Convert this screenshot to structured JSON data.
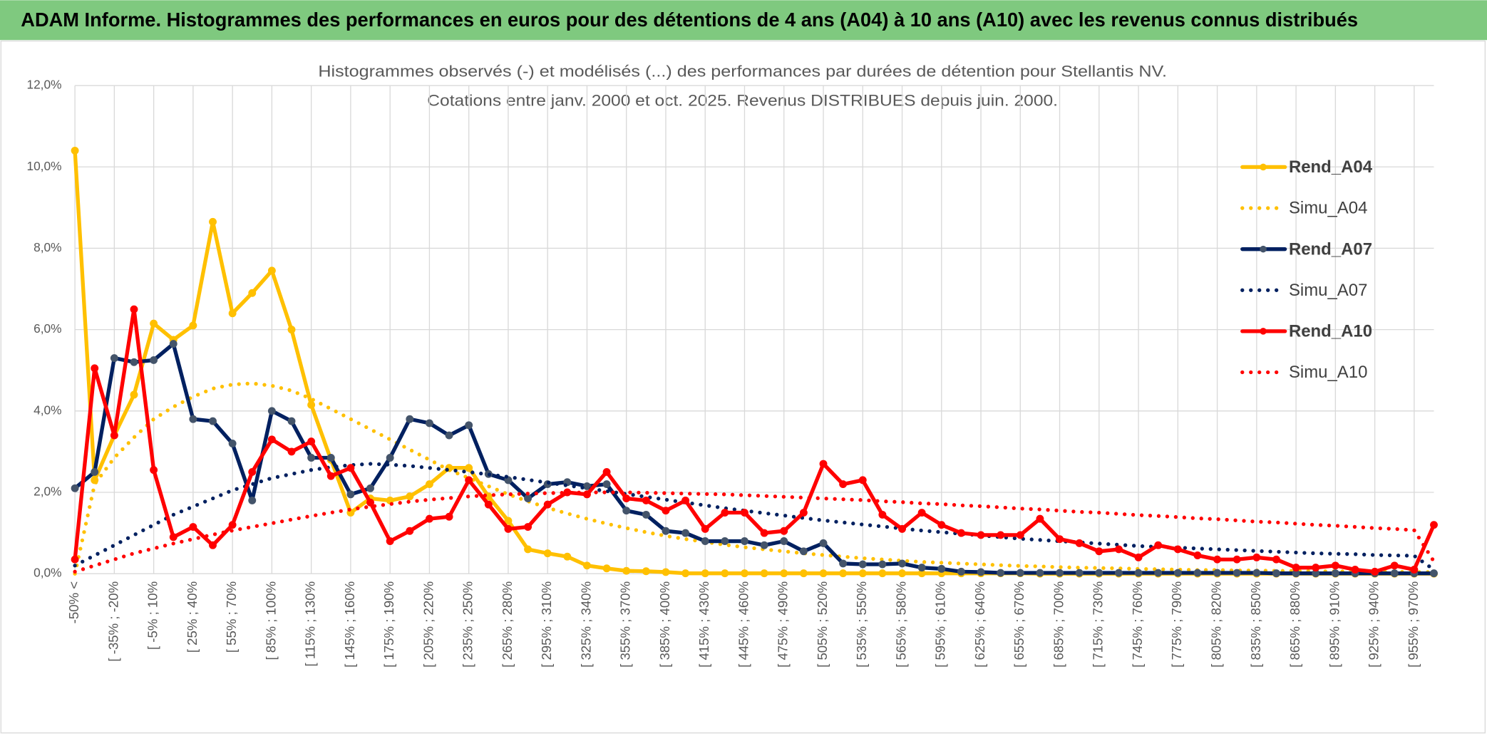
{
  "chart_data": {
    "type": "line",
    "title": "ADAM Informe. Histogrammes des performances en euros pour des détentions de 4 ans (A04) à 10 ans (A10) avec les revenus connus distribués",
    "subtitle": [
      "Histogrammes observés (-) et modélisés (...) des performances par durées de détention pour Stellantis NV.",
      "Cotations entre janv. 2000 et oct. 2025. Revenus DISTRIBUES depuis juin. 2000."
    ],
    "categories": [
      "-50% <",
      null,
      "[ -35% ; -20%",
      null,
      "[ -5% ; 10%",
      null,
      "[ 25% ; 40%",
      null,
      "[ 55% ; 70%",
      null,
      "[ 85% ; 100%",
      null,
      "[ 115% ; 130%",
      null,
      "[ 145% ; 160%",
      null,
      "[ 175% ; 190%",
      null,
      "[ 205% ; 220%",
      null,
      "[ 235% ; 250%",
      null,
      "[ 265% ; 280%",
      null,
      "[ 295% ; 310%",
      null,
      "[ 325% ; 340%",
      null,
      "[ 355% ; 370%",
      null,
      "[ 385% ; 400%",
      null,
      "[ 415% ; 430%",
      null,
      "[ 445% ; 460%",
      null,
      "[ 475% ; 490%",
      null,
      "[ 505% ; 520%",
      null,
      "[ 535% ; 550%",
      null,
      "[ 565% ; 580%",
      null,
      "[ 595% ; 610%",
      null,
      "[ 625% ; 640%",
      null,
      "[ 655% ; 670%",
      null,
      "[ 685% ; 700%",
      null,
      "[ 715% ; 730%",
      null,
      "[ 745% ; 760%",
      null,
      "[ 775% ; 790%",
      null,
      "[ 805% ; 820%",
      null,
      "[ 835% ; 850%",
      null,
      "[ 865% ; 880%",
      null,
      "[ 895% ; 910%",
      null,
      "[ 925% ; 940%",
      null,
      "[ 955% ; 970%",
      null
    ],
    "series": [
      {
        "name": "Rend_A04",
        "color": "#ffc000",
        "linestyle": "solid",
        "markers": true,
        "values": [
          10.4,
          2.3,
          3.4,
          4.4,
          6.15,
          5.75,
          6.1,
          8.65,
          6.4,
          6.9,
          7.45,
          6.0,
          4.15,
          2.8,
          1.5,
          1.85,
          1.8,
          1.9,
          2.2,
          2.6,
          2.6,
          1.9,
          1.3,
          0.6,
          0.5,
          0.42,
          0.2,
          0.13,
          0.07,
          0.06,
          0.04,
          0.01,
          0.01,
          0.01,
          0.01,
          0.01,
          0.01,
          0.01,
          0.01,
          0.01,
          0.01,
          0.01,
          0.01,
          0.01,
          0.01,
          0.01,
          0.01,
          0.01,
          0.01,
          0,
          0,
          0,
          0,
          0,
          0,
          0,
          0,
          0,
          0,
          0,
          0,
          0,
          0,
          0,
          0,
          0,
          0,
          0,
          0,
          0
        ]
      },
      {
        "name": "Simu_A04",
        "color": "#ffc000",
        "linestyle": "dotted",
        "markers": false,
        "values": [
          0,
          2.2,
          2.85,
          3.35,
          3.8,
          4.1,
          4.35,
          4.55,
          4.65,
          4.68,
          4.62,
          4.5,
          4.3,
          4.05,
          3.8,
          3.55,
          3.3,
          3.05,
          2.8,
          2.55,
          2.35,
          2.15,
          1.95,
          1.78,
          1.62,
          1.48,
          1.35,
          1.23,
          1.12,
          1.02,
          0.93,
          0.85,
          0.78,
          0.71,
          0.65,
          0.6,
          0.55,
          0.5,
          0.46,
          0.42,
          0.38,
          0.35,
          0.32,
          0.29,
          0.27,
          0.25,
          0.23,
          0.21,
          0.19,
          0.18,
          0.16,
          0.15,
          0.14,
          0.13,
          0.12,
          0.11,
          0.1,
          0.09,
          0.09,
          0.08,
          0.08,
          0.07,
          0.07,
          0.06,
          0.06,
          0.05,
          0.05,
          0.05,
          0.04,
          0.04
        ]
      },
      {
        "name": "Rend_A07",
        "color": "#002060",
        "marker_color": "#44546a",
        "linestyle": "solid",
        "markers": true,
        "values": [
          2.1,
          2.5,
          5.3,
          5.2,
          5.25,
          5.65,
          3.8,
          3.75,
          3.2,
          1.8,
          4.0,
          3.75,
          2.85,
          2.85,
          1.95,
          2.1,
          2.85,
          3.8,
          3.7,
          3.4,
          3.65,
          2.45,
          2.3,
          1.85,
          2.2,
          2.25,
          2.15,
          2.2,
          1.55,
          1.45,
          1.05,
          1.0,
          0.8,
          0.8,
          0.8,
          0.7,
          0.8,
          0.55,
          0.75,
          0.25,
          0.23,
          0.23,
          0.25,
          0.15,
          0.12,
          0.05,
          0.04,
          0.02,
          0.02,
          0.02,
          0.02,
          0.02,
          0.02,
          0.02,
          0.02,
          0.02,
          0.02,
          0.02,
          0.02,
          0.02,
          0.02,
          0.01,
          0.01,
          0.01,
          0.01,
          0.01,
          0.01,
          0.01,
          0.01,
          0.01
        ]
      },
      {
        "name": "Simu_A07",
        "color": "#002060",
        "linestyle": "dotted",
        "markers": false,
        "values": [
          0.2,
          0.45,
          0.7,
          0.95,
          1.2,
          1.45,
          1.65,
          1.85,
          2.05,
          2.2,
          2.35,
          2.45,
          2.55,
          2.62,
          2.67,
          2.7,
          2.68,
          2.65,
          2.6,
          2.55,
          2.5,
          2.44,
          2.38,
          2.31,
          2.24,
          2.17,
          2.1,
          2.03,
          1.96,
          1.89,
          1.82,
          1.75,
          1.68,
          1.61,
          1.55,
          1.49,
          1.43,
          1.37,
          1.31,
          1.26,
          1.21,
          1.16,
          1.11,
          1.06,
          1.02,
          0.98,
          0.94,
          0.9,
          0.86,
          0.83,
          0.8,
          0.77,
          0.74,
          0.71,
          0.68,
          0.66,
          0.64,
          0.62,
          0.6,
          0.58,
          0.56,
          0.54,
          0.52,
          0.5,
          0.49,
          0.48,
          0.46,
          0.45,
          0.44,
          0.1
        ]
      },
      {
        "name": "Rend_A10",
        "color": "#ff0000",
        "linestyle": "solid",
        "markers": true,
        "values": [
          0.35,
          5.05,
          3.4,
          6.5,
          2.55,
          0.9,
          1.15,
          0.7,
          1.2,
          2.5,
          3.3,
          3.0,
          3.25,
          2.4,
          2.6,
          1.75,
          0.8,
          1.05,
          1.35,
          1.4,
          2.3,
          1.7,
          1.1,
          1.15,
          1.7,
          2.0,
          1.95,
          2.5,
          1.85,
          1.8,
          1.55,
          1.8,
          1.1,
          1.5,
          1.5,
          1.0,
          1.05,
          1.5,
          2.7,
          2.2,
          2.3,
          1.45,
          1.1,
          1.5,
          1.2,
          1.0,
          0.95,
          0.95,
          0.95,
          1.35,
          0.85,
          0.75,
          0.55,
          0.6,
          0.4,
          0.7,
          0.6,
          0.45,
          0.35,
          0.35,
          0.4,
          0.35,
          0.15,
          0.15,
          0.2,
          0.1,
          0.05,
          0.2,
          0.1,
          1.2
        ]
      },
      {
        "name": "Simu_A10",
        "color": "#ff0000",
        "linestyle": "dotted",
        "markers": false,
        "values": [
          0.05,
          0.2,
          0.35,
          0.5,
          0.62,
          0.74,
          0.85,
          0.96,
          1.06,
          1.15,
          1.24,
          1.33,
          1.42,
          1.5,
          1.58,
          1.65,
          1.71,
          1.77,
          1.82,
          1.86,
          1.9,
          1.93,
          1.95,
          1.97,
          1.98,
          1.99,
          2.0,
          2.0,
          2.0,
          1.99,
          1.98,
          1.97,
          1.96,
          1.95,
          1.93,
          1.91,
          1.89,
          1.87,
          1.85,
          1.83,
          1.81,
          1.78,
          1.76,
          1.73,
          1.71,
          1.68,
          1.66,
          1.63,
          1.6,
          1.58,
          1.55,
          1.52,
          1.5,
          1.47,
          1.44,
          1.42,
          1.39,
          1.36,
          1.34,
          1.31,
          1.28,
          1.26,
          1.23,
          1.2,
          1.18,
          1.15,
          1.12,
          1.1,
          1.07,
          0.3
        ]
      }
    ],
    "ylim": [
      0,
      12
    ],
    "yticks": [
      {
        "value": 0,
        "label": "0,0%"
      },
      {
        "value": 2,
        "label": "2,0%"
      },
      {
        "value": 4,
        "label": "4,0%"
      },
      {
        "value": 6,
        "label": "6,0%"
      },
      {
        "value": 8,
        "label": "8,0%"
      },
      {
        "value": 10,
        "label": "10,0%"
      },
      {
        "value": 12,
        "label": "12,0%"
      }
    ],
    "grid": true,
    "legend": "right",
    "banner_color": "#7fc97f"
  }
}
